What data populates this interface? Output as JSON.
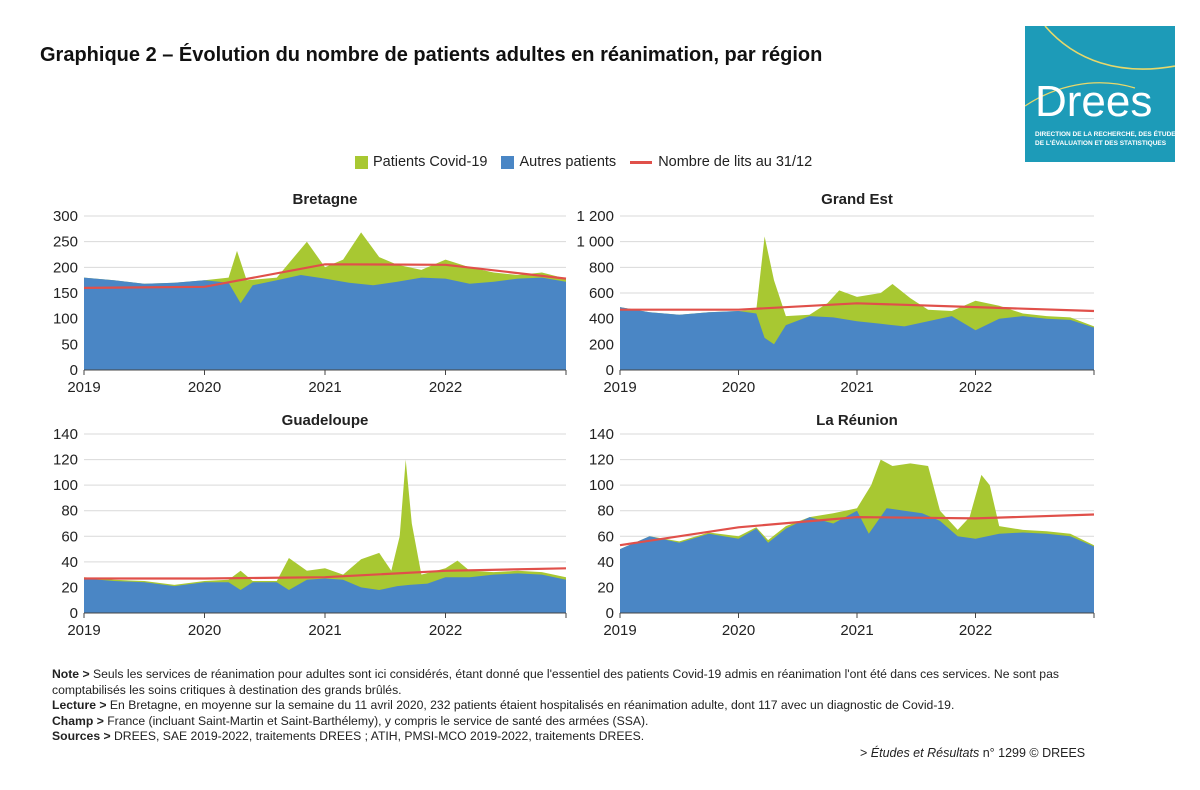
{
  "page": {
    "title": "Graphique 2 – Évolution du nombre de patients adultes en réanimation, par région",
    "logo": {
      "name": "Drees",
      "subtitle_lines": [
        "DIRECTION DE LA RECHERCHE, DES ÉTUDES,",
        "DE L'ÉVALUATION ET DES STATISTIQUES"
      ]
    }
  },
  "legend": {
    "covid": "Patients Covid-19",
    "others": "Autres patients",
    "beds": "Nombre de lits au 31/12"
  },
  "colors": {
    "covid": "#a8c832",
    "others": "#4a86c5",
    "beds": "#e0504a",
    "grid": "#d9d9d9"
  },
  "chart_data": [
    {
      "type": "area",
      "title": "Bretagne",
      "x_ticks": [
        "2019",
        "2020",
        "2021",
        "2022"
      ],
      "x_range": [
        2019,
        2023
      ],
      "y_ticks": [
        "300",
        "250",
        "200",
        "150",
        "100",
        "50",
        "0"
      ],
      "ylim": [
        0,
        300
      ],
      "series": [
        {
          "name": "Autres patients",
          "points": [
            [
              2019,
              180
            ],
            [
              2019.25,
              175
            ],
            [
              2019.5,
              168
            ],
            [
              2019.75,
              170
            ],
            [
              2020,
              175
            ],
            [
              2020.2,
              170
            ],
            [
              2020.3,
              130
            ],
            [
              2020.4,
              165
            ],
            [
              2020.6,
              175
            ],
            [
              2020.8,
              185
            ],
            [
              2021,
              178
            ],
            [
              2021.2,
              170
            ],
            [
              2021.4,
              165
            ],
            [
              2021.6,
              172
            ],
            [
              2021.8,
              180
            ],
            [
              2022,
              178
            ],
            [
              2022.2,
              168
            ],
            [
              2022.4,
              172
            ],
            [
              2022.6,
              178
            ],
            [
              2022.8,
              180
            ],
            [
              2023,
              172
            ]
          ]
        },
        {
          "name": "Patients Covid-19",
          "points": [
            [
              2019,
              180
            ],
            [
              2019.25,
              175
            ],
            [
              2019.5,
              168
            ],
            [
              2019.75,
              170
            ],
            [
              2020,
              175
            ],
            [
              2020.2,
              180
            ],
            [
              2020.27,
              232
            ],
            [
              2020.35,
              175
            ],
            [
              2020.6,
              180
            ],
            [
              2020.85,
              250
            ],
            [
              2021,
              200
            ],
            [
              2021.15,
              215
            ],
            [
              2021.3,
              268
            ],
            [
              2021.45,
              220
            ],
            [
              2021.6,
              205
            ],
            [
              2021.8,
              195
            ],
            [
              2022,
              215
            ],
            [
              2022.2,
              200
            ],
            [
              2022.4,
              190
            ],
            [
              2022.6,
              185
            ],
            [
              2022.8,
              190
            ],
            [
              2023,
              178
            ]
          ]
        },
        {
          "name": "Nombre de lits au 31/12",
          "points": [
            [
              2019,
              160
            ],
            [
              2020,
              162
            ],
            [
              2021,
              206
            ],
            [
              2022,
              205
            ],
            [
              2023,
              178
            ]
          ]
        }
      ]
    },
    {
      "type": "area",
      "title": "Grand Est",
      "x_ticks": [
        "2019",
        "2020",
        "2021",
        "2022"
      ],
      "x_range": [
        2019,
        2023
      ],
      "y_ticks": [
        "1 200",
        "1 000",
        "800",
        "600",
        "400",
        "200",
        "0"
      ],
      "ylim": [
        0,
        1200
      ],
      "series": [
        {
          "name": "Autres patients",
          "points": [
            [
              2019,
              490
            ],
            [
              2019.25,
              450
            ],
            [
              2019.5,
              430
            ],
            [
              2019.75,
              450
            ],
            [
              2020,
              460
            ],
            [
              2020.15,
              440
            ],
            [
              2020.22,
              250
            ],
            [
              2020.3,
              200
            ],
            [
              2020.4,
              350
            ],
            [
              2020.6,
              420
            ],
            [
              2020.8,
              410
            ],
            [
              2021,
              380
            ],
            [
              2021.2,
              360
            ],
            [
              2021.4,
              340
            ],
            [
              2021.6,
              380
            ],
            [
              2021.8,
              420
            ],
            [
              2022,
              310
            ],
            [
              2022.2,
              400
            ],
            [
              2022.4,
              420
            ],
            [
              2022.6,
              400
            ],
            [
              2022.8,
              390
            ],
            [
              2023,
              330
            ]
          ]
        },
        {
          "name": "Patients Covid-19",
          "points": [
            [
              2019,
              490
            ],
            [
              2019.25,
              450
            ],
            [
              2019.5,
              430
            ],
            [
              2019.75,
              450
            ],
            [
              2020,
              460
            ],
            [
              2020.15,
              470
            ],
            [
              2020.22,
              1040
            ],
            [
              2020.3,
              700
            ],
            [
              2020.4,
              420
            ],
            [
              2020.6,
              430
            ],
            [
              2020.75,
              520
            ],
            [
              2020.85,
              620
            ],
            [
              2021,
              570
            ],
            [
              2021.2,
              600
            ],
            [
              2021.3,
              670
            ],
            [
              2021.45,
              560
            ],
            [
              2021.6,
              470
            ],
            [
              2021.8,
              460
            ],
            [
              2022,
              540
            ],
            [
              2022.2,
              500
            ],
            [
              2022.4,
              440
            ],
            [
              2022.6,
              420
            ],
            [
              2022.8,
              410
            ],
            [
              2023,
              340
            ]
          ]
        },
        {
          "name": "Nombre de lits au 31/12",
          "points": [
            [
              2019,
              470
            ],
            [
              2020,
              470
            ],
            [
              2021,
              520
            ],
            [
              2022,
              490
            ],
            [
              2023,
              460
            ]
          ]
        }
      ]
    },
    {
      "type": "area",
      "title": "Guadeloupe",
      "x_ticks": [
        "2019",
        "2020",
        "2021",
        "2022"
      ],
      "x_range": [
        2019,
        2023
      ],
      "y_ticks": [
        "140",
        "120",
        "100",
        "80",
        "60",
        "40",
        "20",
        "0"
      ],
      "ylim": [
        0,
        140
      ],
      "series": [
        {
          "name": "Autres patients",
          "points": [
            [
              2019,
              27
            ],
            [
              2019.25,
              25
            ],
            [
              2019.5,
              24
            ],
            [
              2019.75,
              21
            ],
            [
              2020,
              24
            ],
            [
              2020.2,
              24
            ],
            [
              2020.3,
              18
            ],
            [
              2020.4,
              24
            ],
            [
              2020.6,
              24
            ],
            [
              2020.7,
              18
            ],
            [
              2020.85,
              26
            ],
            [
              2021,
              27
            ],
            [
              2021.15,
              26
            ],
            [
              2021.3,
              20
            ],
            [
              2021.45,
              18
            ],
            [
              2021.6,
              21
            ],
            [
              2021.7,
              22
            ],
            [
              2021.85,
              23
            ],
            [
              2022,
              28
            ],
            [
              2022.2,
              28
            ],
            [
              2022.4,
              30
            ],
            [
              2022.6,
              31
            ],
            [
              2022.8,
              30
            ],
            [
              2023,
              26
            ]
          ]
        },
        {
          "name": "Patients Covid-19",
          "points": [
            [
              2019,
              28
            ],
            [
              2019.25,
              26
            ],
            [
              2019.5,
              25
            ],
            [
              2019.75,
              22
            ],
            [
              2020,
              25
            ],
            [
              2020.2,
              26
            ],
            [
              2020.3,
              33
            ],
            [
              2020.4,
              25
            ],
            [
              2020.6,
              25
            ],
            [
              2020.7,
              43
            ],
            [
              2020.85,
              33
            ],
            [
              2021,
              35
            ],
            [
              2021.15,
              30
            ],
            [
              2021.3,
              42
            ],
            [
              2021.45,
              47
            ],
            [
              2021.55,
              33
            ],
            [
              2021.62,
              60
            ],
            [
              2021.67,
              120
            ],
            [
              2021.72,
              70
            ],
            [
              2021.8,
              30
            ],
            [
              2022,
              35
            ],
            [
              2022.1,
              41
            ],
            [
              2022.2,
              33
            ],
            [
              2022.4,
              32
            ],
            [
              2022.6,
              33
            ],
            [
              2022.8,
              32
            ],
            [
              2023,
              28
            ]
          ]
        },
        {
          "name": "Nombre de lits au 31/12",
          "points": [
            [
              2019,
              27
            ],
            [
              2020,
              27
            ],
            [
              2021,
              28
            ],
            [
              2022,
              33
            ],
            [
              2023,
              35
            ]
          ]
        }
      ]
    },
    {
      "type": "area",
      "title": "La Réunion",
      "x_ticks": [
        "2019",
        "2020",
        "2021",
        "2022"
      ],
      "x_range": [
        2019,
        2023
      ],
      "y_ticks": [
        "140",
        "120",
        "100",
        "80",
        "60",
        "40",
        "20",
        "0"
      ],
      "ylim": [
        0,
        140
      ],
      "series": [
        {
          "name": "Autres patients",
          "points": [
            [
              2019,
              50
            ],
            [
              2019.25,
              60
            ],
            [
              2019.5,
              55
            ],
            [
              2019.75,
              62
            ],
            [
              2020,
              58
            ],
            [
              2020.15,
              66
            ],
            [
              2020.25,
              55
            ],
            [
              2020.4,
              66
            ],
            [
              2020.6,
              75
            ],
            [
              2020.8,
              70
            ],
            [
              2021,
              80
            ],
            [
              2021.1,
              62
            ],
            [
              2021.25,
              82
            ],
            [
              2021.4,
              80
            ],
            [
              2021.55,
              78
            ],
            [
              2021.7,
              72
            ],
            [
              2021.85,
              60
            ],
            [
              2022,
              58
            ],
            [
              2022.2,
              62
            ],
            [
              2022.4,
              63
            ],
            [
              2022.6,
              62
            ],
            [
              2022.8,
              60
            ],
            [
              2023,
              52
            ]
          ]
        },
        {
          "name": "Patients Covid-19",
          "points": [
            [
              2019,
              50
            ],
            [
              2019.25,
              60
            ],
            [
              2019.5,
              56
            ],
            [
              2019.75,
              63
            ],
            [
              2020,
              60
            ],
            [
              2020.15,
              67
            ],
            [
              2020.25,
              57
            ],
            [
              2020.4,
              68
            ],
            [
              2020.6,
              75
            ],
            [
              2020.8,
              78
            ],
            [
              2021,
              82
            ],
            [
              2021.12,
              100
            ],
            [
              2021.2,
              120
            ],
            [
              2021.3,
              115
            ],
            [
              2021.45,
              117
            ],
            [
              2021.6,
              115
            ],
            [
              2021.7,
              80
            ],
            [
              2021.85,
              65
            ],
            [
              2021.95,
              75
            ],
            [
              2022.05,
              108
            ],
            [
              2022.12,
              100
            ],
            [
              2022.2,
              68
            ],
            [
              2022.4,
              65
            ],
            [
              2022.6,
              64
            ],
            [
              2022.8,
              62
            ],
            [
              2023,
              53
            ]
          ]
        },
        {
          "name": "Nombre de lits au 31/12",
          "points": [
            [
              2019,
              53
            ],
            [
              2020,
              67
            ],
            [
              2021,
              75
            ],
            [
              2022,
              74
            ],
            [
              2023,
              77
            ]
          ]
        }
      ]
    }
  ],
  "notes": [
    {
      "label": "Note >",
      "text": "Seuls les services de réanimation pour adultes sont ici considérés, étant donné que l'essentiel des patients Covid-19 admis en réanimation l'ont été dans ces services. Ne sont pas comptabilisés les soins critiques à destination des grands brûlés."
    },
    {
      "label": "Lecture >",
      "text": "En Bretagne, en moyenne sur la semaine du 11 avril 2020, 232 patients étaient hospitalisés en réanimation adulte, dont 117 avec un diagnostic de Covid-19."
    },
    {
      "label": "Champ >",
      "text": "France (incluant Saint-Martin et Saint-Barthélemy), y compris le service de santé des armées (SSA)."
    },
    {
      "label": "Sources >",
      "text": "DREES, SAE 2019-2022, traitements DREES ; ATIH, PMSI-MCO 2019-2022, traitements DREES."
    }
  ],
  "source_ref": {
    "publication": "Études et Résultats",
    "prefix": ">",
    "suffix": "n° 1299 © DREES"
  }
}
